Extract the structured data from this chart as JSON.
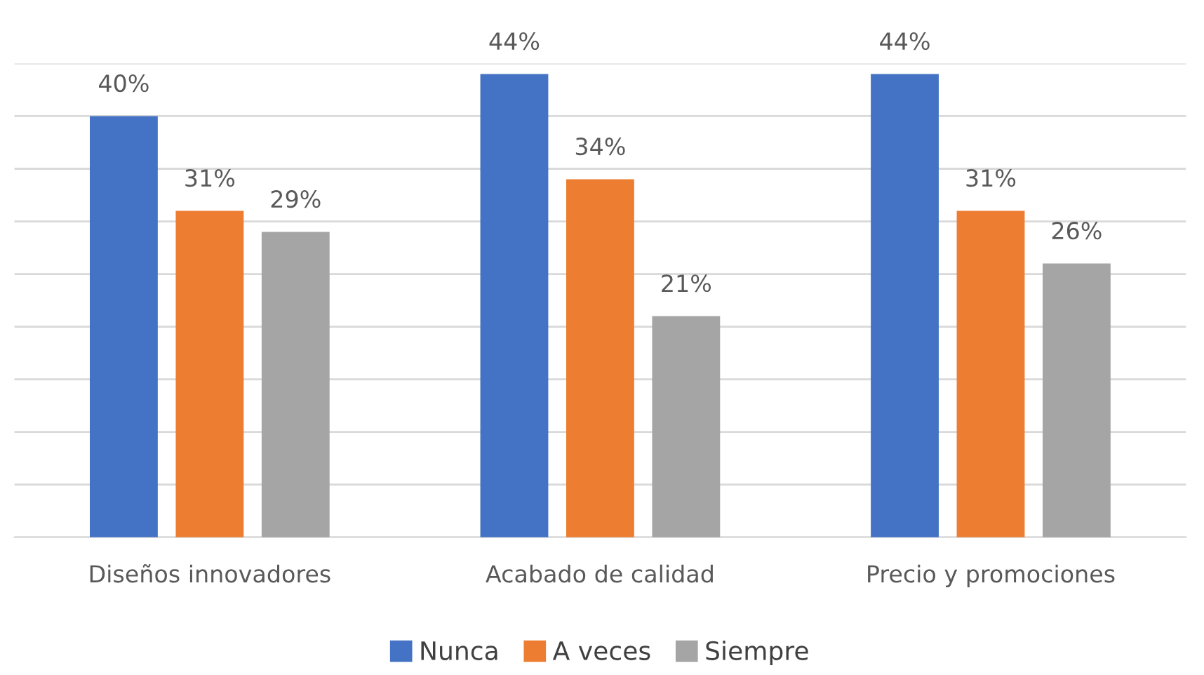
{
  "chart_data": {
    "type": "bar",
    "categories": [
      "Diseños innovadores",
      "Acabado de calidad",
      "Precio y promociones"
    ],
    "series": [
      {
        "name": "Nunca",
        "color": "#4472c4",
        "values": [
          40,
          44,
          44
        ],
        "value_labels": [
          "40%",
          "44%",
          "44%"
        ]
      },
      {
        "name": "A veces",
        "color": "#ed7d31",
        "values": [
          31,
          34,
          31
        ],
        "value_labels": [
          "31%",
          "34%",
          "31%"
        ]
      },
      {
        "name": "Siempre",
        "color": "#a5a5a5",
        "values": [
          29,
          21,
          26
        ],
        "value_labels": [
          "29%",
          "21%",
          "26%"
        ]
      }
    ],
    "ylim": [
      0,
      45
    ],
    "yticks": [
      {
        "value": 0,
        "label": null
      },
      {
        "value": 5,
        "label": null
      },
      {
        "value": 10,
        "label": null
      },
      {
        "value": 15,
        "label": null
      },
      {
        "value": 20,
        "label": null
      },
      {
        "value": 25,
        "label": null
      },
      {
        "value": 30,
        "label": null
      },
      {
        "value": 35,
        "label": null
      },
      {
        "value": 40,
        "label": null
      },
      {
        "value": 45,
        "label": null
      }
    ],
    "tick_labels": "x",
    "grid": "y",
    "legend": "bottom"
  }
}
